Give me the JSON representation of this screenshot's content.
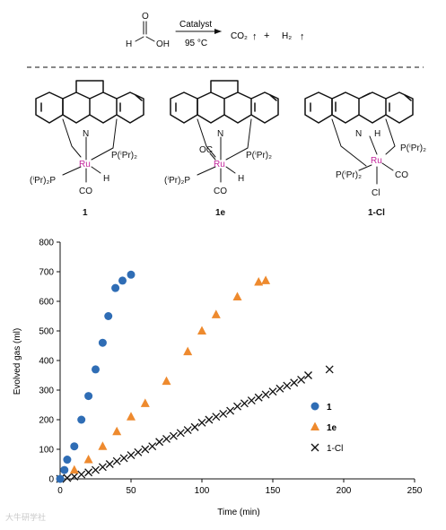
{
  "reaction": {
    "reactant_c": "C",
    "reactant_h": "H",
    "reactant_o": "O",
    "reactant_oh": "OH",
    "catalyst_label": "Catalyst",
    "condition": "95 °C",
    "product_1": "CO₂",
    "plus": "+",
    "product_2": "H₂",
    "up_arrow": "↑"
  },
  "structures": [
    {
      "label": "1",
      "ru": "Ru",
      "n": "N",
      "p_top": "P(ⁱPr)₂",
      "p_bottom": "(ⁱPr)₂P",
      "co": "CO",
      "h": "H"
    },
    {
      "label": "1e",
      "ru": "Ru",
      "n": "N",
      "p_top": "P(ⁱPr)₂",
      "p_bottom": "(ⁱPr)₂P",
      "co": "CO",
      "oc": "OC",
      "h": "H"
    },
    {
      "label": "1-Cl",
      "ru": "Ru",
      "n": "N",
      "p_top": "P(ⁱPr)₂",
      "p_bottom": "P(ⁱPr)₂",
      "co": "CO",
      "h": "H",
      "cl": "Cl"
    }
  ],
  "chart_data": {
    "type": "scatter",
    "xlabel": "Time (min)",
    "ylabel": "Evolved gas (ml)",
    "xlim": [
      0,
      250
    ],
    "ylim": [
      0,
      800
    ],
    "xticks": [
      0,
      50,
      100,
      150,
      200,
      250
    ],
    "yticks": [
      0,
      100,
      200,
      300,
      400,
      500,
      600,
      700,
      800
    ],
    "grid": false,
    "legend_position": "right",
    "series": [
      {
        "name": "1",
        "marker": "circle",
        "color": "#2f6db5",
        "x": [
          0,
          3,
          5,
          10,
          15,
          20,
          25,
          30,
          34,
          39,
          44,
          50
        ],
        "y": [
          0,
          30,
          65,
          110,
          200,
          280,
          370,
          460,
          550,
          645,
          670,
          690
        ]
      },
      {
        "name": "1e",
        "marker": "triangle",
        "color": "#ee8a2e",
        "x": [
          0,
          10,
          20,
          30,
          40,
          50,
          60,
          75,
          90,
          100,
          110,
          125,
          140,
          145
        ],
        "y": [
          0,
          30,
          65,
          110,
          160,
          210,
          255,
          330,
          430,
          500,
          555,
          615,
          665,
          670
        ],
        "first_n_hidden": 1
      },
      {
        "name": "1-Cl",
        "marker": "x",
        "color": "#111111",
        "x": [
          0,
          5,
          10,
          15,
          20,
          25,
          30,
          35,
          40,
          45,
          50,
          55,
          60,
          65,
          70,
          75,
          80,
          85,
          90,
          95,
          100,
          105,
          110,
          115,
          120,
          125,
          130,
          135,
          140,
          145,
          150,
          155,
          160,
          165,
          170,
          175,
          190
        ],
        "y": [
          0,
          3,
          8,
          15,
          22,
          30,
          40,
          50,
          60,
          70,
          80,
          90,
          100,
          110,
          125,
          135,
          145,
          155,
          165,
          175,
          190,
          200,
          210,
          220,
          230,
          245,
          255,
          265,
          275,
          285,
          295,
          305,
          315,
          325,
          335,
          350,
          370
        ]
      }
    ]
  },
  "watermark": "大牛研学社"
}
